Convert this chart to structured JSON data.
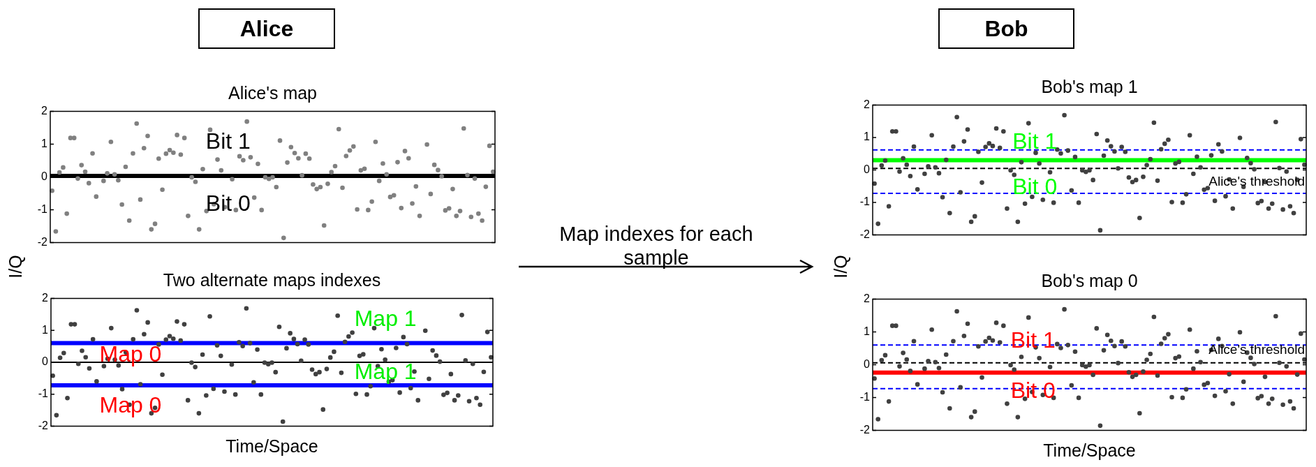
{
  "chart_data": [
    {
      "type": "scatter",
      "title": "Alice's map",
      "ylabel": "I/Q",
      "color": "#808080",
      "marker": "circle",
      "tick_labels": "y",
      "ylim": [
        -2,
        2
      ],
      "yticks": [
        -2,
        -1,
        0,
        1,
        2
      ],
      "categories": [
        null,
        null,
        null,
        null,
        null,
        null,
        null,
        null,
        null,
        null,
        null,
        null,
        null,
        null,
        null,
        null,
        null,
        null,
        null,
        null,
        null,
        null,
        null,
        null,
        null,
        null,
        null,
        null,
        null,
        null,
        null,
        null,
        null,
        null,
        null,
        null,
        null,
        null,
        null,
        null,
        null,
        null,
        null,
        null,
        null,
        null,
        null,
        null,
        null,
        null,
        null,
        null,
        null,
        null,
        null,
        null,
        null,
        null,
        null,
        null,
        null,
        null,
        null,
        null,
        null,
        null,
        null,
        null,
        null,
        null,
        null,
        null,
        null,
        null,
        null,
        null,
        null,
        null,
        null,
        null,
        null,
        null,
        null,
        null,
        null,
        null,
        null,
        null,
        null,
        null,
        null,
        null,
        null,
        null,
        null,
        null,
        null,
        null,
        null,
        null,
        null,
        null,
        null,
        null,
        null,
        null,
        null,
        null,
        null,
        null,
        null,
        null,
        null,
        null,
        null,
        null,
        null,
        null,
        null,
        null,
        null
      ],
      "values": [
        -0.42,
        -1.66,
        0.14,
        0.29,
        -1.12,
        1.19,
        1.19,
        -0.05,
        0.36,
        0.16,
        -0.19,
        0.72,
        -0.6,
        null,
        -0.12,
        0.11,
        1.07,
        0.08,
        -0.1,
        -0.84,
        0.31,
        -1.33,
        0.72,
        1.63,
        -0.69,
        0.88,
        1.25,
        -1.6,
        -1.43,
        0.56,
        -0.39,
        0.71,
        0.82,
        0.74,
        1.28,
        0.68,
        1.19,
        -1.19,
        -0.01,
        -0.15,
        -1.6,
        0.24,
        -1.04,
        1.44,
        -0.83,
        0.53,
        0.2,
        -0.92,
        null,
        -0.07,
        -1.01,
        0.63,
        0.51,
        1.69,
        0.6,
        -0.63,
        0.4,
        -1.01,
        -0.01,
        -0.06,
        -0.01,
        -0.31,
        1.11,
        -1.86,
        0.44,
        0.91,
        0.73,
        0.57,
        0.05,
        0.71,
        0.56,
        -0.23,
        -0.37,
        -0.31,
        -1.48,
        -0.21,
        0.15,
        0.33,
        1.46,
        -0.33,
        0.64,
        0.81,
        0.93,
        -0.99,
        0.2,
        0.25,
        -1.01,
        -0.75,
        1.07,
        -0.12,
        0.41,
        0.08,
        -0.61,
        -0.56,
        0.45,
        -0.95,
        0.79,
        0.57,
        -0.81,
        -0.29,
        -1.19,
        null,
        0.99,
        -0.52,
        0.37,
        0.21,
        0.02,
        -1.02,
        -0.96,
        -0.37,
        -1.19,
        -1.04,
        1.48,
        0.06,
        -1.22,
        -0.05,
        -1.12,
        -1.33,
        -0.3,
        0.95,
        0.16
      ],
      "ref_lines": [
        {
          "axis": "y",
          "value": 0.03,
          "color": "#000000",
          "line_style": "solid"
        }
      ],
      "annotations": [
        "Alice",
        "Bit 1",
        "Bit 0"
      ]
    },
    {
      "type": "scatter",
      "title": "Two alternate maps indexes",
      "xlabel": "Time/Space",
      "color": "#404040",
      "marker": "circle",
      "tick_labels": "y",
      "ylim": [
        -2,
        2
      ],
      "yticks": [
        -2,
        -1,
        0,
        1,
        2
      ],
      "categories": [
        null,
        null,
        null,
        null,
        null,
        null,
        null,
        null,
        null,
        null,
        null,
        null,
        null,
        null,
        null,
        null,
        null,
        null,
        null,
        null,
        null,
        null,
        null,
        null,
        null,
        null,
        null,
        null,
        null,
        null,
        null,
        null,
        null,
        null,
        null,
        null,
        null,
        null,
        null,
        null,
        null,
        null,
        null,
        null,
        null,
        null,
        null,
        null,
        null,
        null,
        null,
        null,
        null,
        null,
        null,
        null,
        null,
        null,
        null,
        null,
        null,
        null,
        null,
        null,
        null,
        null,
        null,
        null,
        null,
        null,
        null,
        null,
        null,
        null,
        null,
        null,
        null,
        null,
        null,
        null,
        null,
        null,
        null,
        null,
        null,
        null,
        null,
        null,
        null,
        null,
        null,
        null,
        null,
        null,
        null,
        null,
        null,
        null,
        null,
        null,
        null,
        null,
        null,
        null,
        null,
        null,
        null,
        null,
        null,
        null,
        null,
        null,
        null,
        null,
        null,
        null,
        null,
        null,
        null,
        null,
        null
      ],
      "values": [
        -0.42,
        -1.66,
        0.14,
        0.29,
        -1.12,
        1.19,
        1.19,
        -0.05,
        0.36,
        0.16,
        -0.19,
        0.72,
        -0.6,
        null,
        -0.12,
        0.11,
        1.07,
        0.08,
        -0.1,
        -0.84,
        0.31,
        -1.33,
        0.72,
        1.63,
        -0.69,
        0.88,
        1.25,
        -1.6,
        -1.43,
        0.56,
        -0.39,
        0.71,
        0.82,
        0.74,
        1.28,
        0.68,
        1.19,
        -1.19,
        -0.01,
        -0.15,
        -1.6,
        0.24,
        -1.04,
        1.44,
        -0.83,
        0.53,
        0.2,
        -0.92,
        null,
        -0.07,
        -1.01,
        0.63,
        0.51,
        1.69,
        0.6,
        -0.63,
        0.4,
        -1.01,
        -0.01,
        -0.06,
        -0.01,
        -0.31,
        1.11,
        -1.86,
        0.44,
        0.91,
        0.73,
        0.57,
        0.05,
        0.71,
        0.56,
        -0.23,
        -0.37,
        -0.31,
        -1.48,
        -0.21,
        0.15,
        0.33,
        1.46,
        -0.33,
        0.64,
        0.81,
        0.93,
        -0.99,
        0.2,
        0.25,
        -1.01,
        -0.75,
        1.07,
        -0.12,
        0.41,
        0.08,
        -0.61,
        -0.56,
        0.45,
        -0.95,
        0.79,
        0.57,
        -0.81,
        -0.29,
        -1.19,
        null,
        0.99,
        -0.52,
        0.37,
        0.21,
        0.02,
        -1.02,
        -0.96,
        -0.37,
        -1.19,
        -1.04,
        1.48,
        0.06,
        -1.22,
        -0.05,
        -1.12,
        -1.33,
        -0.3,
        0.95,
        0.16
      ],
      "ref_lines": [
        {
          "axis": "y",
          "value": 0.6,
          "color": "#0000ff",
          "line_style": "solid"
        },
        {
          "axis": "y",
          "value": -0.72,
          "color": "#0000ff",
          "line_style": "solid"
        },
        {
          "axis": "y",
          "value": 0,
          "color": "#000000",
          "line_style": "solid"
        }
      ],
      "annotations": [
        "Map 0",
        "Map 0",
        "Map 1",
        "Map 1"
      ]
    },
    {
      "type": "scatter",
      "title": "Bob's map 1",
      "ylabel": "I/Q",
      "color": "#404040",
      "marker": "circle",
      "tick_labels": "y",
      "ylim": [
        -2,
        2
      ],
      "yticks": [
        -2,
        -1,
        0,
        1,
        2
      ],
      "categories": [
        null,
        null,
        null,
        null,
        null,
        null,
        null,
        null,
        null,
        null,
        null,
        null,
        null,
        null,
        null,
        null,
        null,
        null,
        null,
        null,
        null,
        null,
        null,
        null,
        null,
        null,
        null,
        null,
        null,
        null,
        null,
        null,
        null,
        null,
        null,
        null,
        null,
        null,
        null,
        null,
        null,
        null,
        null,
        null,
        null,
        null,
        null,
        null,
        null,
        null,
        null,
        null,
        null,
        null,
        null,
        null,
        null,
        null,
        null,
        null,
        null,
        null,
        null,
        null,
        null,
        null,
        null,
        null,
        null,
        null,
        null,
        null,
        null,
        null,
        null,
        null,
        null,
        null,
        null,
        null,
        null,
        null,
        null,
        null,
        null,
        null,
        null,
        null,
        null,
        null,
        null,
        null,
        null,
        null,
        null,
        null,
        null,
        null,
        null,
        null,
        null,
        null,
        null,
        null,
        null,
        null,
        null,
        null,
        null,
        null,
        null,
        null,
        null,
        null,
        null,
        null,
        null,
        null,
        null,
        null,
        null
      ],
      "values": [
        -0.42,
        -1.66,
        0.14,
        0.29,
        -1.12,
        1.19,
        1.19,
        -0.05,
        0.36,
        0.16,
        -0.19,
        0.72,
        -0.6,
        null,
        -0.12,
        0.11,
        1.07,
        0.08,
        -0.1,
        -0.84,
        0.31,
        -1.33,
        0.72,
        1.63,
        -0.69,
        0.88,
        1.25,
        -1.6,
        -1.43,
        0.56,
        -0.39,
        0.71,
        0.82,
        0.74,
        1.28,
        0.68,
        1.19,
        -1.19,
        -0.01,
        -0.15,
        -1.6,
        0.24,
        -1.04,
        1.44,
        -0.83,
        0.53,
        0.2,
        -0.92,
        null,
        -0.07,
        -1.01,
        0.63,
        0.51,
        1.69,
        0.6,
        -0.63,
        0.4,
        -1.01,
        -0.01,
        -0.06,
        -0.01,
        -0.31,
        1.11,
        -1.86,
        0.44,
        0.91,
        0.73,
        0.57,
        0.05,
        0.71,
        0.56,
        -0.23,
        -0.37,
        -0.31,
        -1.48,
        -0.21,
        0.15,
        0.33,
        1.46,
        -0.33,
        0.64,
        0.81,
        0.93,
        -0.99,
        0.2,
        0.25,
        -1.01,
        -0.75,
        1.07,
        -0.12,
        0.41,
        0.08,
        -0.61,
        -0.56,
        0.45,
        -0.95,
        0.79,
        0.57,
        -0.81,
        -0.29,
        -1.19,
        null,
        0.99,
        -0.52,
        0.37,
        0.21,
        0.02,
        -1.02,
        -0.96,
        -0.37,
        -1.19,
        -1.04,
        1.48,
        0.06,
        -1.22,
        -0.05,
        -1.12,
        -1.33,
        -0.3,
        0.95,
        0.16
      ],
      "ref_lines": [
        {
          "axis": "y",
          "value": 0.62,
          "color": "#0000ff",
          "line_style": "dashed"
        },
        {
          "axis": "y",
          "value": -0.72,
          "color": "#0000ff",
          "line_style": "dashed"
        },
        {
          "axis": "y",
          "value": 0.05,
          "color": "#000000",
          "line_style": "dashed",
          "label": "Alice's threshold"
        },
        {
          "axis": "y",
          "value": 0.3,
          "color": "#00ff00",
          "line_style": "solid"
        }
      ],
      "annotations": [
        "Bob",
        "Bit 1",
        "Bit 0"
      ]
    },
    {
      "type": "scatter",
      "title": "Bob's map 0",
      "xlabel": "Time/Space",
      "color": "#404040",
      "marker": "circle",
      "tick_labels": "y",
      "ylim": [
        -2,
        2
      ],
      "yticks": [
        -2,
        -1,
        0,
        1,
        2
      ],
      "categories": [
        null,
        null,
        null,
        null,
        null,
        null,
        null,
        null,
        null,
        null,
        null,
        null,
        null,
        null,
        null,
        null,
        null,
        null,
        null,
        null,
        null,
        null,
        null,
        null,
        null,
        null,
        null,
        null,
        null,
        null,
        null,
        null,
        null,
        null,
        null,
        null,
        null,
        null,
        null,
        null,
        null,
        null,
        null,
        null,
        null,
        null,
        null,
        null,
        null,
        null,
        null,
        null,
        null,
        null,
        null,
        null,
        null,
        null,
        null,
        null,
        null,
        null,
        null,
        null,
        null,
        null,
        null,
        null,
        null,
        null,
        null,
        null,
        null,
        null,
        null,
        null,
        null,
        null,
        null,
        null,
        null,
        null,
        null,
        null,
        null,
        null,
        null,
        null,
        null,
        null,
        null,
        null,
        null,
        null,
        null,
        null,
        null,
        null,
        null,
        null,
        null,
        null,
        null,
        null,
        null,
        null,
        null,
        null,
        null,
        null,
        null,
        null,
        null,
        null,
        null,
        null,
        null,
        null,
        null,
        null,
        null
      ],
      "values": [
        -0.42,
        -1.66,
        0.14,
        0.29,
        -1.12,
        1.19,
        1.19,
        -0.05,
        0.36,
        0.16,
        -0.19,
        0.72,
        -0.6,
        null,
        -0.12,
        0.11,
        1.07,
        0.08,
        -0.1,
        -0.84,
        0.31,
        -1.33,
        0.72,
        1.63,
        -0.69,
        0.88,
        1.25,
        -1.6,
        -1.43,
        0.56,
        -0.39,
        0.71,
        0.82,
        0.74,
        1.28,
        0.68,
        1.19,
        -1.19,
        -0.01,
        -0.15,
        -1.6,
        0.24,
        -1.04,
        1.44,
        -0.83,
        0.53,
        0.2,
        -0.92,
        null,
        -0.07,
        -1.01,
        0.63,
        0.51,
        1.69,
        0.6,
        -0.63,
        0.4,
        -1.01,
        -0.01,
        -0.06,
        -0.01,
        -0.31,
        1.11,
        -1.86,
        0.44,
        0.91,
        0.73,
        0.57,
        0.05,
        0.71,
        0.56,
        -0.23,
        -0.37,
        -0.31,
        -1.48,
        -0.21,
        0.15,
        0.33,
        1.46,
        -0.33,
        0.64,
        0.81,
        0.93,
        -0.99,
        0.2,
        0.25,
        -1.01,
        -0.75,
        1.07,
        -0.12,
        0.41,
        0.08,
        -0.61,
        -0.56,
        0.45,
        -0.95,
        0.79,
        0.57,
        -0.81,
        -0.29,
        -1.19,
        null,
        0.99,
        -0.52,
        0.37,
        0.21,
        0.02,
        -1.02,
        -0.96,
        -0.37,
        -1.19,
        -1.04,
        1.48,
        0.06,
        -1.22,
        -0.05,
        -1.12,
        -1.33,
        -0.3,
        0.95,
        0.16
      ],
      "ref_lines": [
        {
          "axis": "y",
          "value": 0.6,
          "color": "#0000ff",
          "line_style": "dashed"
        },
        {
          "axis": "y",
          "value": -0.73,
          "color": "#0000ff",
          "line_style": "dashed"
        },
        {
          "axis": "y",
          "value": 0.06,
          "color": "#000000",
          "line_style": "dashed",
          "label": "Alice's threshold"
        },
        {
          "axis": "y",
          "value": -0.24,
          "color": "#ff0000",
          "line_style": "solid"
        }
      ],
      "annotations": [
        "Bit 1",
        "Bit 0"
      ]
    },
    {
      "type": "other",
      "annotations": [
        "Map indexes for each sample"
      ]
    }
  ]
}
